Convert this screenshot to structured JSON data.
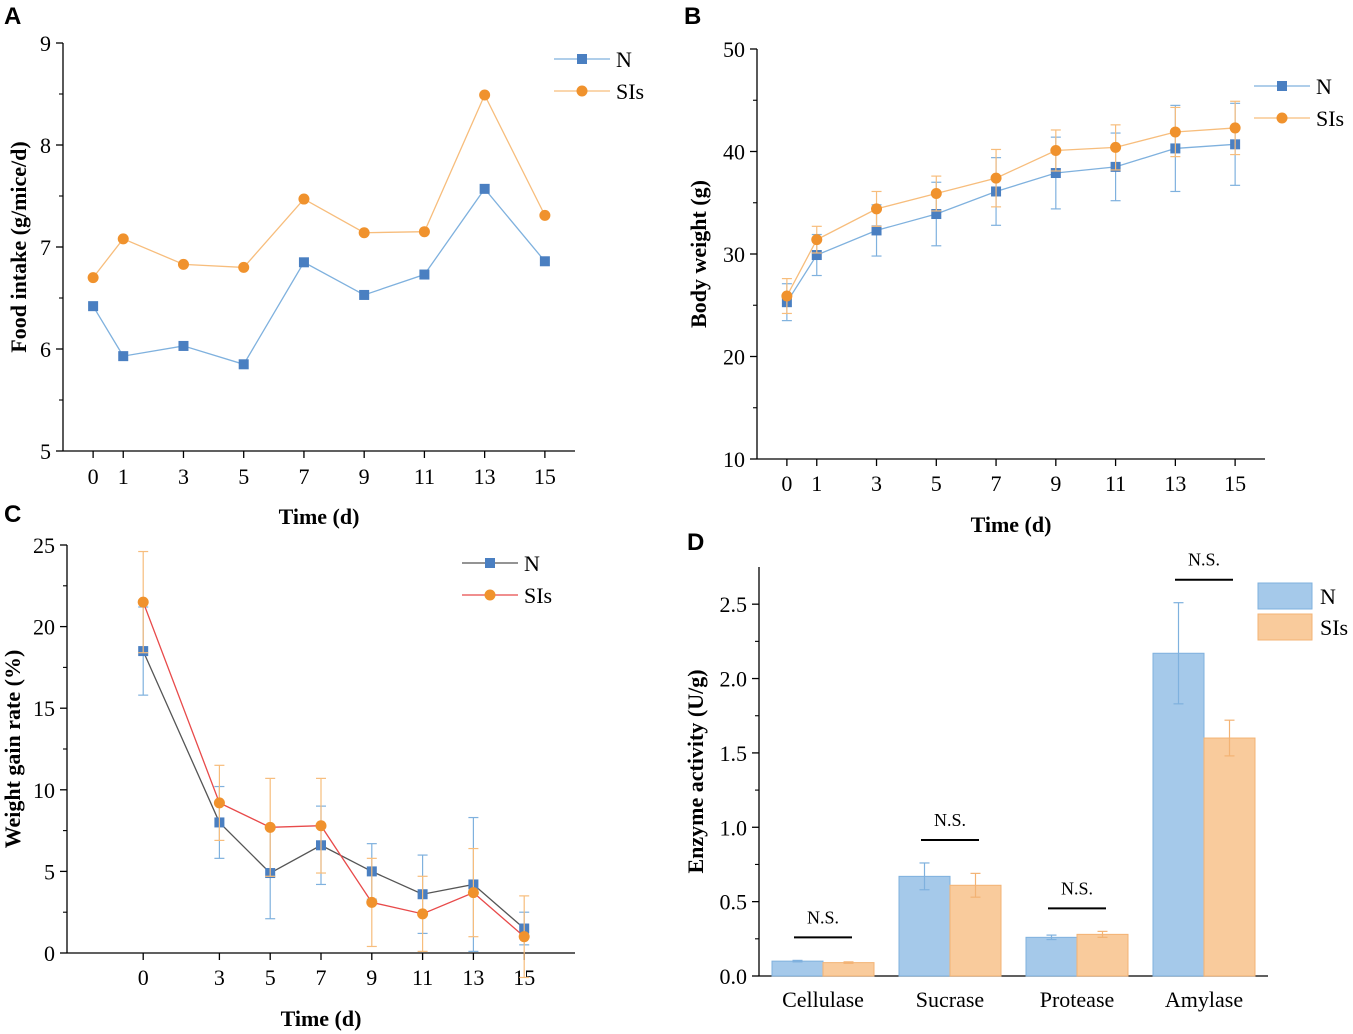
{
  "colors": {
    "n_marker": "#4a7fc1",
    "n_line_ab": "#7fb1de",
    "sis_marker": "#f0922d",
    "sis_line_ab": "#f7bd7c",
    "n_line_c": "#555555",
    "sis_line_c": "#e84a4a",
    "n_err_c": "#7fb1de",
    "sis_err_c": "#f7bd7c",
    "n_bar": "#a5c9ea",
    "n_bar_edge": "#7fb1de",
    "sis_bar": "#f9cb9c",
    "sis_bar_edge": "#f3b374"
  },
  "chart_data": [
    {
      "id": "A",
      "panel_label": "A",
      "type": "line",
      "xlabel": "Time (d)",
      "ylabel": "Food intake (g/mice/d)",
      "x": [
        0,
        1,
        3,
        5,
        7,
        9,
        11,
        13,
        15
      ],
      "x_tick_labels": [
        "0",
        "1",
        "3",
        "5",
        "7",
        "9",
        "11",
        "13",
        "15"
      ],
      "xlim": [
        -1,
        16
      ],
      "ylim": [
        5,
        9
      ],
      "y_ticks": [
        5,
        6,
        7,
        8,
        9
      ],
      "y_tick_labels": [
        "5",
        "6",
        "7",
        "8",
        "9"
      ],
      "legend_position": "top-right",
      "series": [
        {
          "name": "N",
          "marker": "square",
          "values": [
            6.42,
            5.93,
            6.03,
            5.85,
            6.85,
            6.53,
            6.73,
            7.57,
            6.86
          ]
        },
        {
          "name": "SIs",
          "marker": "circle",
          "values": [
            6.7,
            7.08,
            6.83,
            6.8,
            7.47,
            7.14,
            7.15,
            8.49,
            7.31
          ]
        }
      ]
    },
    {
      "id": "B",
      "panel_label": "B",
      "type": "line",
      "xlabel": "Time (d)",
      "ylabel": "Body weight (g)",
      "x": [
        0,
        1,
        3,
        5,
        7,
        9,
        11,
        13,
        15
      ],
      "x_tick_labels": [
        "0",
        "1",
        "3",
        "5",
        "7",
        "9",
        "11",
        "13",
        "15"
      ],
      "xlim": [
        -1,
        16
      ],
      "ylim": [
        10,
        50
      ],
      "y_ticks": [
        10,
        20,
        30,
        40,
        50
      ],
      "y_tick_labels": [
        "10",
        "20",
        "30",
        "40",
        "50"
      ],
      "legend_position": "top-right",
      "series": [
        {
          "name": "N",
          "marker": "square",
          "values": [
            25.3,
            29.9,
            32.3,
            33.9,
            36.1,
            37.9,
            38.5,
            40.3,
            40.7
          ],
          "errors": [
            1.8,
            2.0,
            2.5,
            3.1,
            3.3,
            3.5,
            3.3,
            4.2,
            4.0
          ]
        },
        {
          "name": "SIs",
          "marker": "circle",
          "values": [
            25.9,
            31.4,
            34.4,
            35.9,
            37.4,
            40.1,
            40.4,
            41.9,
            42.3
          ],
          "errors": [
            1.7,
            1.3,
            1.7,
            1.7,
            2.8,
            2.0,
            2.2,
            2.4,
            2.6
          ]
        }
      ]
    },
    {
      "id": "C",
      "panel_label": "C",
      "type": "line",
      "xlabel": "Time (d)",
      "ylabel": "Weight gain rate (%)",
      "x": [
        0,
        3,
        5,
        7,
        9,
        11,
        13,
        15
      ],
      "x_tick_labels": [
        "0",
        "3",
        "5",
        "7",
        "9",
        "11",
        "13",
        "15"
      ],
      "xlim": [
        -3,
        17
      ],
      "ylim": [
        0,
        25
      ],
      "y_ticks": [
        0,
        5,
        10,
        15,
        20,
        25
      ],
      "y_tick_labels": [
        "0",
        "5",
        "10",
        "15",
        "20",
        "25"
      ],
      "legend_position": "top-right",
      "series": [
        {
          "name": "N",
          "marker": "square",
          "values": [
            18.5,
            8.0,
            4.9,
            6.6,
            5.0,
            3.6,
            4.2,
            1.5
          ],
          "errors": [
            2.7,
            2.2,
            2.8,
            2.4,
            1.7,
            2.4,
            4.1,
            1.0
          ]
        },
        {
          "name": "SIs",
          "marker": "circle",
          "values": [
            21.5,
            9.2,
            7.7,
            7.8,
            3.1,
            2.4,
            3.7,
            1.0
          ],
          "errors": [
            3.1,
            2.3,
            3.0,
            2.9,
            2.7,
            2.3,
            2.7,
            2.5
          ]
        }
      ]
    },
    {
      "id": "D",
      "panel_label": "D",
      "type": "bar",
      "xlabel": "",
      "ylabel": "Enzyme activity (U/g)",
      "categories": [
        "Cellulase",
        "Sucrase",
        "Protease",
        "Amylase"
      ],
      "ylim": [
        0,
        2.75
      ],
      "y_ticks": [
        0.0,
        0.5,
        1.0,
        1.5,
        2.0,
        2.5
      ],
      "y_tick_labels": [
        "0.0",
        "0.5",
        "1.0",
        "1.5",
        "2.0",
        "2.5"
      ],
      "legend_position": "top-right",
      "series": [
        {
          "name": "N",
          "values": [
            0.1,
            0.67,
            0.26,
            2.17
          ],
          "errors": [
            0.005,
            0.09,
            0.015,
            0.34
          ]
        },
        {
          "name": "SIs",
          "values": [
            0.09,
            0.61,
            0.28,
            1.6
          ],
          "errors": [
            0.005,
            0.08,
            0.02,
            0.12
          ]
        }
      ],
      "annotations": [
        "N.S.",
        "N.S.",
        "N.S.",
        "N.S."
      ]
    }
  ]
}
